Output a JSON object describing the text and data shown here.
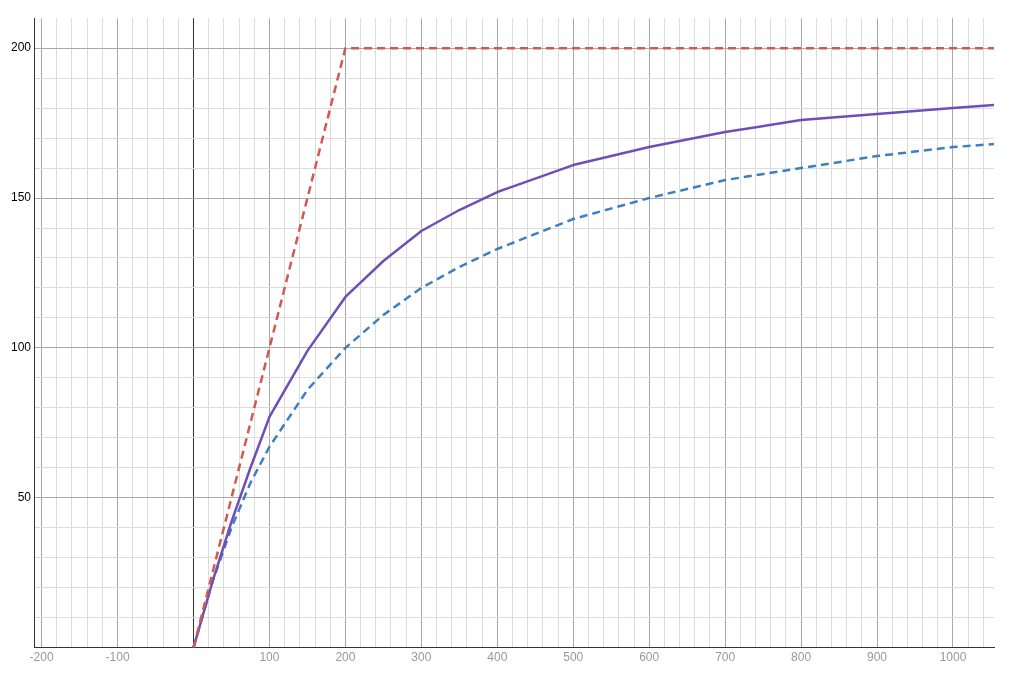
{
  "chart_data": {
    "type": "line",
    "grid": true,
    "marker": "none",
    "xlim": [
      -210,
      1054
    ],
    "ylim": [
      0,
      210
    ],
    "xticks": [
      -200,
      {
        "value": -180,
        "label": null
      },
      {
        "value": -160,
        "label": null
      },
      {
        "value": -140,
        "label": null
      },
      {
        "value": -120,
        "label": null
      },
      -100,
      {
        "value": -80,
        "label": null
      },
      {
        "value": -60,
        "label": null
      },
      {
        "value": -40,
        "label": null
      },
      {
        "value": -20,
        "label": null
      },
      {
        "value": 0,
        "label": null
      },
      {
        "value": 20,
        "label": null
      },
      {
        "value": 40,
        "label": null
      },
      {
        "value": 60,
        "label": null
      },
      {
        "value": 80,
        "label": null
      },
      100,
      {
        "value": 120,
        "label": null
      },
      {
        "value": 140,
        "label": null
      },
      {
        "value": 160,
        "label": null
      },
      {
        "value": 180,
        "label": null
      },
      200,
      {
        "value": 220,
        "label": null
      },
      {
        "value": 240,
        "label": null
      },
      {
        "value": 260,
        "label": null
      },
      {
        "value": 280,
        "label": null
      },
      300,
      {
        "value": 320,
        "label": null
      },
      {
        "value": 340,
        "label": null
      },
      {
        "value": 360,
        "label": null
      },
      {
        "value": 380,
        "label": null
      },
      400,
      {
        "value": 420,
        "label": null
      },
      {
        "value": 440,
        "label": null
      },
      {
        "value": 460,
        "label": null
      },
      {
        "value": 480,
        "label": null
      },
      500,
      {
        "value": 520,
        "label": null
      },
      {
        "value": 540,
        "label": null
      },
      {
        "value": 560,
        "label": null
      },
      {
        "value": 580,
        "label": null
      },
      600,
      {
        "value": 620,
        "label": null
      },
      {
        "value": 640,
        "label": null
      },
      {
        "value": 660,
        "label": null
      },
      {
        "value": 680,
        "label": null
      },
      700,
      {
        "value": 720,
        "label": null
      },
      {
        "value": 740,
        "label": null
      },
      {
        "value": 760,
        "label": null
      },
      {
        "value": 780,
        "label": null
      },
      800,
      {
        "value": 820,
        "label": null
      },
      {
        "value": 840,
        "label": null
      },
      {
        "value": 860,
        "label": null
      },
      {
        "value": 880,
        "label": null
      },
      900,
      {
        "value": 920,
        "label": null
      },
      {
        "value": 940,
        "label": null
      },
      {
        "value": 960,
        "label": null
      },
      {
        "value": 980,
        "label": null
      },
      1000,
      {
        "value": 1020,
        "label": null
      },
      {
        "value": 1040,
        "label": null
      }
    ],
    "yticks": [
      {
        "value": 10,
        "label": null
      },
      {
        "value": 20,
        "label": null
      },
      {
        "value": 30,
        "label": null
      },
      {
        "value": 40,
        "label": null
      },
      50,
      {
        "value": 60,
        "label": null
      },
      {
        "value": 70,
        "label": null
      },
      {
        "value": 80,
        "label": null
      },
      {
        "value": 90,
        "label": null
      },
      100,
      {
        "value": 110,
        "label": null
      },
      {
        "value": 120,
        "label": null
      },
      {
        "value": 130,
        "label": null
      },
      {
        "value": 140,
        "label": null
      },
      150,
      {
        "value": 160,
        "label": null
      },
      {
        "value": 170,
        "label": null
      },
      {
        "value": 180,
        "label": null
      },
      {
        "value": 190,
        "label": null
      },
      200
    ],
    "series": [
      {
        "color": "#d05a50",
        "line_style": "dashed",
        "x": [
          0,
          200,
          1054
        ],
        "values": [
          0,
          200,
          200
        ]
      },
      {
        "color": "#6f4fb5",
        "line_style": "solid",
        "x": [
          0,
          25,
          50,
          75,
          100,
          150,
          200,
          250,
          300,
          350,
          400,
          500,
          600,
          700,
          800,
          900,
          1000,
          1054
        ],
        "values": [
          0,
          22,
          42,
          60,
          77,
          99,
          117,
          129,
          139,
          146,
          152,
          161,
          167,
          172,
          176,
          178,
          180,
          181
        ]
      },
      {
        "color": "#3d7fc2",
        "line_style": "dashed",
        "x": [
          0,
          25,
          50,
          75,
          100,
          150,
          200,
          250,
          300,
          350,
          400,
          500,
          600,
          700,
          800,
          900,
          1000,
          1054
        ],
        "values": [
          0,
          22,
          40,
          55,
          67,
          86,
          100,
          111,
          120,
          127,
          133,
          143,
          150,
          156,
          160,
          164,
          167,
          168
        ]
      }
    ]
  }
}
